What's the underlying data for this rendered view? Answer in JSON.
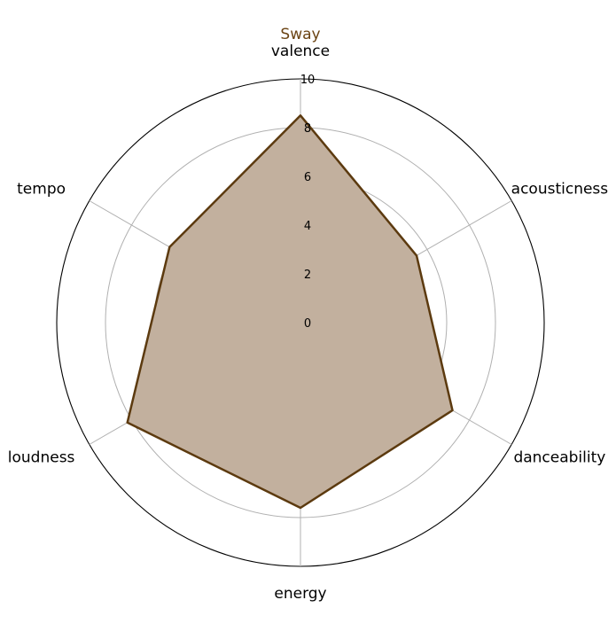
{
  "chart_data": {
    "type": "radar",
    "title": "Sway",
    "axes": [
      "valence",
      "acousticness",
      "danceability",
      "energy",
      "loudness",
      "tempo"
    ],
    "series": [
      {
        "values": [
          8.5,
          5.5,
          7.2,
          7.6,
          8.2,
          6.2
        ],
        "color": "#5c3a0f",
        "fill": "#c2b09e"
      }
    ],
    "rlim": [
      0,
      10
    ],
    "rticks": [
      0,
      2,
      4,
      6,
      8,
      10
    ],
    "tick_labels": [
      "0",
      "2",
      "4",
      "6",
      "8",
      "10"
    ],
    "grid": true,
    "title_color": "#6b4414"
  }
}
